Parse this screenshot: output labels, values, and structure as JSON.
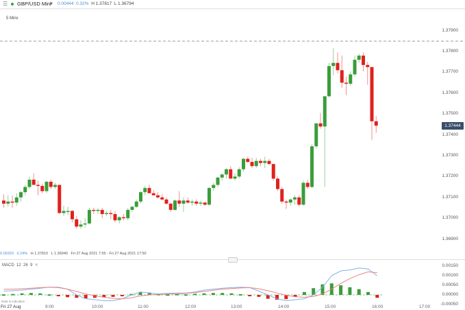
{
  "header": {
    "menu_icon": "hamburger-icon",
    "status_dot_color": "#2ea836",
    "instrument": "GBP/USD Mini",
    "change": "0.00444",
    "change_pct": "0.32%",
    "high": "H 1.37817",
    "low": "L 1.36794"
  },
  "timeframe": "5 Mins",
  "current_price": "1.37444",
  "info_line": {
    "change": "0.00329",
    "change_pct": "0.24%",
    "high": "H 1.37810",
    "low": "L 1.36940",
    "range": "Fri 27 Aug 2021 7:55 - Fri 27 Aug 2021 17:50"
  },
  "macd": {
    "label": "MACD",
    "fast": "12",
    "slow": "26",
    "signal": "9",
    "close_icon": "close-icon"
  },
  "footer": {
    "disclaimer": "Data is indicative",
    "date_label": "Fri 27 Aug"
  },
  "colors": {
    "up": "#3a9d3a",
    "down": "#e0211f",
    "macd_line": "#7fb1e8",
    "signal_line": "#f08080",
    "badge": "#3a4d6b"
  },
  "chart_data": [
    {
      "type": "candlestick",
      "title": "GBP/USD Mini 5 Mins",
      "xlabel": "",
      "ylabel": "",
      "x_ticks": [
        "Fri 27 Aug",
        "9:00",
        "10:00",
        "11:00",
        "12:00",
        "13:00",
        "14:00",
        "15:00",
        "16:00",
        "17:00"
      ],
      "y_ticks": [
        "1.37900",
        "1.37800",
        "1.37700",
        "1.37600",
        "1.37500",
        "1.37400",
        "1.37300",
        "1.37200",
        "1.37100",
        "1.37000",
        "1.36900"
      ],
      "ylim": [
        1.3685,
        1.3795
      ],
      "reference_line": 1.3786,
      "last_price": 1.37444,
      "candles": [
        {
          "o": 1.37085,
          "h": 1.37115,
          "l": 1.3705,
          "c": 1.3707
        },
        {
          "o": 1.3707,
          "h": 1.3711,
          "l": 1.37055,
          "c": 1.3708
        },
        {
          "o": 1.3708,
          "h": 1.3711,
          "l": 1.3705,
          "c": 1.37075
        },
        {
          "o": 1.37075,
          "h": 1.3712,
          "l": 1.3706,
          "c": 1.371
        },
        {
          "o": 1.371,
          "h": 1.3713,
          "l": 1.3708,
          "c": 1.37125
        },
        {
          "o": 1.37125,
          "h": 1.3716,
          "l": 1.3711,
          "c": 1.3715
        },
        {
          "o": 1.3715,
          "h": 1.372,
          "l": 1.3714,
          "c": 1.37185
        },
        {
          "o": 1.37185,
          "h": 1.37215,
          "l": 1.3717,
          "c": 1.3716
        },
        {
          "o": 1.3716,
          "h": 1.3718,
          "l": 1.3711,
          "c": 1.37155
        },
        {
          "o": 1.37155,
          "h": 1.37165,
          "l": 1.3712,
          "c": 1.3713
        },
        {
          "o": 1.3713,
          "h": 1.3718,
          "l": 1.3712,
          "c": 1.37175
        },
        {
          "o": 1.37175,
          "h": 1.37185,
          "l": 1.3714,
          "c": 1.3715
        },
        {
          "o": 1.3715,
          "h": 1.3717,
          "l": 1.3714,
          "c": 1.3716
        },
        {
          "o": 1.3716,
          "h": 1.3716,
          "l": 1.3702,
          "c": 1.37025
        },
        {
          "o": 1.37025,
          "h": 1.3706,
          "l": 1.3701,
          "c": 1.37035
        },
        {
          "o": 1.37035,
          "h": 1.37055,
          "l": 1.37015,
          "c": 1.37035
        },
        {
          "o": 1.37035,
          "h": 1.3704,
          "l": 1.3698,
          "c": 1.36995
        },
        {
          "o": 1.36995,
          "h": 1.3701,
          "l": 1.3695,
          "c": 1.3696
        },
        {
          "o": 1.3696,
          "h": 1.3699,
          "l": 1.3695,
          "c": 1.3697
        },
        {
          "o": 1.3697,
          "h": 1.37,
          "l": 1.36955,
          "c": 1.36975
        },
        {
          "o": 1.36975,
          "h": 1.3705,
          "l": 1.3697,
          "c": 1.3704
        },
        {
          "o": 1.3704,
          "h": 1.3705,
          "l": 1.3702,
          "c": 1.37035
        },
        {
          "o": 1.37035,
          "h": 1.3705,
          "l": 1.3702,
          "c": 1.3704
        },
        {
          "o": 1.3704,
          "h": 1.3705,
          "l": 1.37,
          "c": 1.3702
        },
        {
          "o": 1.3702,
          "h": 1.37035,
          "l": 1.3701,
          "c": 1.37025
        },
        {
          "o": 1.37025,
          "h": 1.3704,
          "l": 1.36995,
          "c": 1.3702
        },
        {
          "o": 1.3702,
          "h": 1.37035,
          "l": 1.3698,
          "c": 1.3699
        },
        {
          "o": 1.3699,
          "h": 1.3701,
          "l": 1.36975,
          "c": 1.37005
        },
        {
          "o": 1.37005,
          "h": 1.3702,
          "l": 1.3699,
          "c": 1.37
        },
        {
          "o": 1.37,
          "h": 1.3705,
          "l": 1.3699,
          "c": 1.3704
        },
        {
          "o": 1.3704,
          "h": 1.3706,
          "l": 1.3703,
          "c": 1.37055
        },
        {
          "o": 1.37055,
          "h": 1.3709,
          "l": 1.3705,
          "c": 1.3708
        },
        {
          "o": 1.3708,
          "h": 1.3713,
          "l": 1.3707,
          "c": 1.37125
        },
        {
          "o": 1.37125,
          "h": 1.37155,
          "l": 1.3711,
          "c": 1.37145
        },
        {
          "o": 1.37145,
          "h": 1.3716,
          "l": 1.3712,
          "c": 1.3712
        },
        {
          "o": 1.3712,
          "h": 1.37135,
          "l": 1.3711,
          "c": 1.3711
        },
        {
          "o": 1.3711,
          "h": 1.37125,
          "l": 1.37095,
          "c": 1.371
        },
        {
          "o": 1.371,
          "h": 1.37115,
          "l": 1.37085,
          "c": 1.3709
        },
        {
          "o": 1.3709,
          "h": 1.371,
          "l": 1.37065,
          "c": 1.3707
        },
        {
          "o": 1.3707,
          "h": 1.37075,
          "l": 1.3703,
          "c": 1.3704
        },
        {
          "o": 1.3704,
          "h": 1.3709,
          "l": 1.37035,
          "c": 1.37085
        },
        {
          "o": 1.37085,
          "h": 1.3713,
          "l": 1.37055,
          "c": 1.3707
        },
        {
          "o": 1.3707,
          "h": 1.371,
          "l": 1.3703,
          "c": 1.37085
        },
        {
          "o": 1.37085,
          "h": 1.371,
          "l": 1.3707,
          "c": 1.37075
        },
        {
          "o": 1.37075,
          "h": 1.3709,
          "l": 1.3706,
          "c": 1.3708
        },
        {
          "o": 1.3708,
          "h": 1.3709,
          "l": 1.3706,
          "c": 1.3707
        },
        {
          "o": 1.3707,
          "h": 1.37085,
          "l": 1.3706,
          "c": 1.37075
        },
        {
          "o": 1.37075,
          "h": 1.3708,
          "l": 1.3706,
          "c": 1.37065
        },
        {
          "o": 1.37065,
          "h": 1.3715,
          "l": 1.3706,
          "c": 1.37145
        },
        {
          "o": 1.37145,
          "h": 1.3717,
          "l": 1.3713,
          "c": 1.3716
        },
        {
          "o": 1.3716,
          "h": 1.372,
          "l": 1.3715,
          "c": 1.37195
        },
        {
          "o": 1.37195,
          "h": 1.37215,
          "l": 1.3718,
          "c": 1.3721
        },
        {
          "o": 1.3721,
          "h": 1.3724,
          "l": 1.3719,
          "c": 1.37235
        },
        {
          "o": 1.37235,
          "h": 1.3725,
          "l": 1.372,
          "c": 1.3719
        },
        {
          "o": 1.3719,
          "h": 1.37215,
          "l": 1.3718,
          "c": 1.372
        },
        {
          "o": 1.372,
          "h": 1.37245,
          "l": 1.3719,
          "c": 1.37235
        },
        {
          "o": 1.37235,
          "h": 1.3729,
          "l": 1.37225,
          "c": 1.37285
        },
        {
          "o": 1.37285,
          "h": 1.37295,
          "l": 1.37265,
          "c": 1.3727
        },
        {
          "o": 1.3727,
          "h": 1.3729,
          "l": 1.3724,
          "c": 1.3725
        },
        {
          "o": 1.3725,
          "h": 1.3729,
          "l": 1.3724,
          "c": 1.37275
        },
        {
          "o": 1.37275,
          "h": 1.37285,
          "l": 1.3725,
          "c": 1.37265
        },
        {
          "o": 1.37265,
          "h": 1.37295,
          "l": 1.3724,
          "c": 1.37275
        },
        {
          "o": 1.37275,
          "h": 1.37285,
          "l": 1.37255,
          "c": 1.3726
        },
        {
          "o": 1.3726,
          "h": 1.3726,
          "l": 1.3718,
          "c": 1.3719
        },
        {
          "o": 1.3719,
          "h": 1.372,
          "l": 1.3713,
          "c": 1.3714
        },
        {
          "o": 1.3714,
          "h": 1.3715,
          "l": 1.3707,
          "c": 1.3708
        },
        {
          "o": 1.3708,
          "h": 1.3709,
          "l": 1.37045,
          "c": 1.37075
        },
        {
          "o": 1.37075,
          "h": 1.37095,
          "l": 1.3706,
          "c": 1.3709
        },
        {
          "o": 1.3709,
          "h": 1.3711,
          "l": 1.37065,
          "c": 1.371
        },
        {
          "o": 1.371,
          "h": 1.3711,
          "l": 1.37055,
          "c": 1.37065
        },
        {
          "o": 1.37065,
          "h": 1.3718,
          "l": 1.3706,
          "c": 1.3717
        },
        {
          "o": 1.3717,
          "h": 1.37185,
          "l": 1.3714,
          "c": 1.3715
        },
        {
          "o": 1.3715,
          "h": 1.37355,
          "l": 1.37145,
          "c": 1.37345
        },
        {
          "o": 1.37345,
          "h": 1.37455,
          "l": 1.37335,
          "c": 1.37455
        },
        {
          "o": 1.37455,
          "h": 1.37505,
          "l": 1.3743,
          "c": 1.3744
        },
        {
          "o": 1.3744,
          "h": 1.37585,
          "l": 1.3715,
          "c": 1.37585
        },
        {
          "o": 1.37585,
          "h": 1.37745,
          "l": 1.3758,
          "c": 1.3773
        },
        {
          "o": 1.3773,
          "h": 1.37815,
          "l": 1.37685,
          "c": 1.37745
        },
        {
          "o": 1.37745,
          "h": 1.37795,
          "l": 1.37695,
          "c": 1.3771
        },
        {
          "o": 1.3771,
          "h": 1.3778,
          "l": 1.37625,
          "c": 1.3765
        },
        {
          "o": 1.3765,
          "h": 1.3768,
          "l": 1.3759,
          "c": 1.37645
        },
        {
          "o": 1.37645,
          "h": 1.37705,
          "l": 1.37635,
          "c": 1.3769
        },
        {
          "o": 1.3769,
          "h": 1.3778,
          "l": 1.3768,
          "c": 1.3776
        },
        {
          "o": 1.3776,
          "h": 1.3779,
          "l": 1.37745,
          "c": 1.3778
        },
        {
          "o": 1.3778,
          "h": 1.37795,
          "l": 1.37705,
          "c": 1.37735
        },
        {
          "o": 1.37735,
          "h": 1.3775,
          "l": 1.3764,
          "c": 1.37725
        },
        {
          "o": 1.37725,
          "h": 1.37725,
          "l": 1.37375,
          "c": 1.37465
        },
        {
          "o": 1.37465,
          "h": 1.3749,
          "l": 1.3741,
          "c": 1.37444
        }
      ]
    },
    {
      "type": "line",
      "title": "MACD 12 26 9",
      "y_ticks": [
        "0.00150",
        "0.00100",
        "0.00050",
        "0.00000",
        "-0.00050"
      ],
      "ylim": [
        -0.0006,
        0.0017
      ],
      "series": [
        {
          "name": "MACD",
          "color": "#7fb1e8",
          "values": [
            0.0002,
            0.00022,
            0.00025,
            0.0003,
            0.00035,
            0.0004,
            0.0004,
            0.0003,
            0.0,
            -0.0002,
            -0.00025,
            -0.0003,
            -0.0003,
            -0.0002,
            0.0,
            0.00015,
            0.0001,
            5e-05,
            8e-05,
            0.0001,
            0.0001,
            0.00015,
            0.00025,
            0.0003,
            0.00035,
            0.00038,
            0.0004,
            0.00038,
            0.0002,
            0.0,
            -0.0002,
            -0.0003,
            -0.00025,
            -0.0002,
            0.0,
            0.0004,
            0.001,
            0.00125,
            0.0013,
            0.0014,
            0.00135,
            0.001
          ]
        },
        {
          "name": "Signal",
          "color": "#f08080",
          "values": [
            0.0003,
            0.0003,
            0.00032,
            0.00035,
            0.00038,
            0.0004,
            0.00038,
            0.0003,
            0.00018,
            5e-05,
            -5e-05,
            -0.00012,
            -0.00018,
            -0.0002,
            -0.00015,
            -5e-05,
            0.0,
            3e-05,
            5e-05,
            5e-05,
            8e-05,
            0.00012,
            0.00018,
            0.00024,
            0.0003,
            0.00033,
            0.00036,
            0.00038,
            0.00032,
            0.00022,
            0.0001,
            -2e-05,
            -0.0001,
            -0.00012,
            -8e-05,
            5e-05,
            0.0003,
            0.0006,
            0.00085,
            0.00105,
            0.0012,
            0.00115
          ]
        }
      ],
      "histogram": [
        3e-05,
        5e-05,
        8e-05,
        0.0001,
        8e-05,
        3e-05,
        -5e-05,
        -0.00012,
        -0.00015,
        -0.00018,
        -0.00015,
        -0.00012,
        -0.0001,
        -5e-05,
        5e-05,
        0.00015,
        0.00012,
        5e-05,
        3e-05,
        5e-05,
        3e-05,
        6e-05,
        8e-05,
        0.0001,
        0.0001,
        8e-05,
        4e-05,
        -2e-05,
        -0.0001,
        -0.0002,
        -0.00025,
        -0.00022,
        -0.0001,
        0.00015,
        0.00035,
        0.00055,
        0.0006,
        0.0005,
        0.0004,
        0.0003,
        0.00015,
        -0.00015
      ]
    }
  ]
}
